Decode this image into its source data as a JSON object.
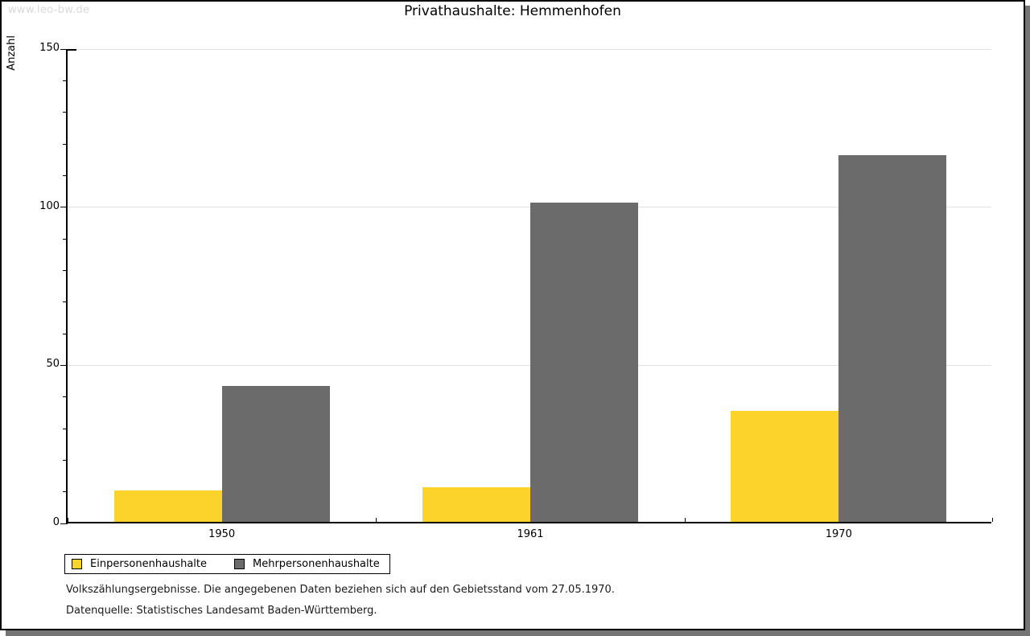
{
  "watermark": "www.leo-bw.de",
  "chart_data": {
    "type": "bar",
    "title": "Privathaushalte: Hemmenhofen",
    "ylabel": "Anzahl",
    "xlabel": "",
    "categories": [
      "1950",
      "1961",
      "1970"
    ],
    "series": [
      {
        "name": "Einpersonenhaushalte",
        "color": "#fcd32b",
        "values": [
          10,
          11,
          35
        ]
      },
      {
        "name": "Mehrpersonenhaushalte",
        "color": "#6b6b6b",
        "values": [
          43,
          101,
          116
        ]
      }
    ],
    "ylim": [
      0,
      150
    ],
    "yticks": [
      0,
      50,
      100,
      150
    ],
    "minor_tick_step": 10,
    "grid": true,
    "legend_position": "bottom-left"
  },
  "footnotes": {
    "line1": "Volkszählungsergebnisse. Die angegebenen Daten beziehen sich auf den Gebietsstand vom 27.05.1970.",
    "line2": "Datenquelle: Statistisches Landesamt Baden-Württemberg."
  },
  "colors": {
    "series1": "#fcd32b",
    "series2": "#6b6b6b",
    "gridline": "#e0e0e0",
    "watermark": "#d9d9d9",
    "panel_border": "#000000",
    "panel_shadow": "#757575"
  }
}
